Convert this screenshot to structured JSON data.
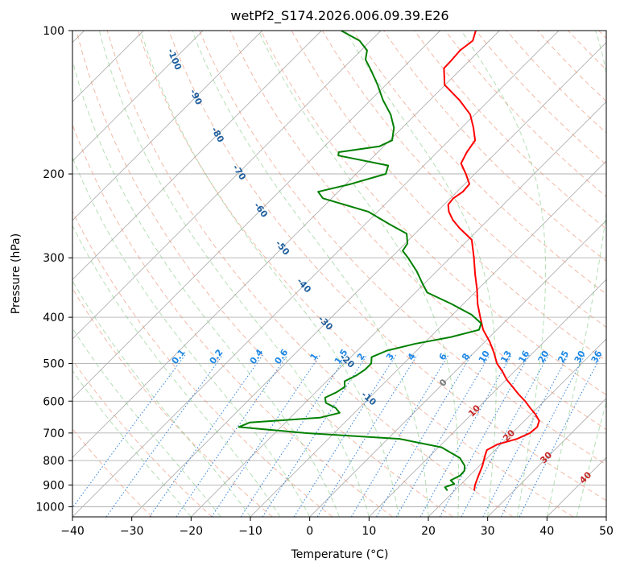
{
  "chart_data": {
    "type": "line",
    "title": "wetPf2_S174.2026.006.09.39.E26",
    "xlabel": "Temperature (°C)",
    "ylabel": "Pressure (hPa)",
    "xlim": [
      -40,
      50
    ],
    "ylim": [
      1050,
      100
    ],
    "y_scale": "log",
    "grid": true,
    "xticks": [
      -40,
      -30,
      -20,
      -10,
      0,
      10,
      20,
      30,
      40,
      50
    ],
    "yticks": [
      100,
      200,
      300,
      400,
      500,
      600,
      700,
      800,
      900,
      1000
    ],
    "skew_factor": 1.0,
    "series": [
      {
        "color": "#ff0000",
        "points": [
          [
            23.3,
            925
          ],
          [
            22.5,
            900
          ],
          [
            21.5,
            860
          ],
          [
            20.5,
            820
          ],
          [
            19.2,
            780
          ],
          [
            18.6,
            760
          ],
          [
            19.4,
            740
          ],
          [
            21.8,
            720
          ],
          [
            23.0,
            700
          ],
          [
            23.2,
            680
          ],
          [
            22.5,
            660
          ],
          [
            20.8,
            640
          ],
          [
            18.8,
            620
          ],
          [
            16.8,
            600
          ],
          [
            14.5,
            580
          ],
          [
            12.3,
            560
          ],
          [
            10.0,
            540
          ],
          [
            8.0,
            520
          ],
          [
            5.7,
            500
          ],
          [
            3.4,
            475
          ],
          [
            0.8,
            450
          ],
          [
            -2.3,
            425
          ],
          [
            -4.9,
            400
          ],
          [
            -7.6,
            375
          ],
          [
            -10.1,
            350
          ],
          [
            -13.0,
            325
          ],
          [
            -16.0,
            300
          ],
          [
            -19.4,
            275
          ],
          [
            -23.4,
            260
          ],
          [
            -25.9,
            250
          ],
          [
            -28.0,
            240
          ],
          [
            -29.3,
            232
          ],
          [
            -29.5,
            225
          ],
          [
            -29.0,
            218
          ],
          [
            -29.2,
            210
          ],
          [
            -31.5,
            200
          ],
          [
            -34.1,
            190
          ],
          [
            -35.0,
            180
          ],
          [
            -35.6,
            170
          ],
          [
            -38.0,
            160
          ],
          [
            -40.8,
            150
          ],
          [
            -45.0,
            140
          ],
          [
            -50.1,
            130
          ],
          [
            -53.0,
            120
          ],
          [
            -53.1,
            115
          ],
          [
            -53.3,
            110
          ],
          [
            -52.8,
            105
          ],
          [
            -54.0,
            100
          ]
        ]
      },
      {
        "color": "#008000",
        "points": [
          [
            18.8,
            925
          ],
          [
            17.8,
            910
          ],
          [
            18.8,
            895
          ],
          [
            17.6,
            880
          ],
          [
            18.4,
            860
          ],
          [
            18.3,
            840
          ],
          [
            17.5,
            820
          ],
          [
            15.4,
            790
          ],
          [
            10.5,
            750
          ],
          [
            2.0,
            720
          ],
          [
            -15.0,
            700
          ],
          [
            -27.1,
            680
          ],
          [
            -26.0,
            665
          ],
          [
            -15.0,
            650
          ],
          [
            -12.5,
            635
          ],
          [
            -14.0,
            620
          ],
          [
            -16.5,
            605
          ],
          [
            -17.5,
            590
          ],
          [
            -16.5,
            575
          ],
          [
            -16.0,
            560
          ],
          [
            -17.0,
            545
          ],
          [
            -16.0,
            530
          ],
          [
            -15.5,
            515
          ],
          [
            -15.5,
            500
          ],
          [
            -16.5,
            485
          ],
          [
            -15.0,
            470
          ],
          [
            -11.5,
            455
          ],
          [
            -6.5,
            440
          ],
          [
            -3.0,
            425
          ],
          [
            -3.7,
            412
          ],
          [
            -6.8,
            395
          ],
          [
            -12.0,
            375
          ],
          [
            -18.0,
            355
          ],
          [
            -20.3,
            340
          ],
          [
            -23.4,
            320
          ],
          [
            -27.1,
            300
          ],
          [
            -29.2,
            290
          ],
          [
            -29.6,
            280
          ],
          [
            -31.4,
            267
          ],
          [
            -35.9,
            255
          ],
          [
            -41.6,
            240
          ],
          [
            -51.5,
            225
          ],
          [
            -53.4,
            218
          ],
          [
            -49.2,
            210
          ],
          [
            -45.0,
            200
          ],
          [
            -46.0,
            192
          ],
          [
            -56.1,
            183
          ],
          [
            -56.6,
            180
          ],
          [
            -50.7,
            175
          ],
          [
            -49.6,
            170
          ],
          [
            -51.4,
            160
          ],
          [
            -54.2,
            150
          ],
          [
            -57.9,
            140
          ],
          [
            -61.4,
            130
          ],
          [
            -64.6,
            122
          ],
          [
            -67.7,
            115
          ],
          [
            -69.0,
            110
          ],
          [
            -71.9,
            105
          ],
          [
            -76.7,
            100
          ]
        ]
      }
    ],
    "annotations": {
      "dry_adiabat_labels": [
        "-100",
        "-90",
        "-80",
        "-70",
        "-60",
        "-50",
        "-40",
        "-30",
        "-20",
        "-10"
      ],
      "mixing_ratio_labels": [
        "0.1",
        "0.2",
        "0.4",
        "0.6",
        "1",
        "1.5",
        "2",
        "3",
        "4",
        "6",
        "8",
        "10",
        "13",
        "16",
        "20",
        "25",
        "30",
        "36"
      ],
      "moist_adiabat_labels": [
        "0",
        "10",
        "20",
        "30",
        "40"
      ]
    },
    "colors": {
      "temperature": "#ff0000",
      "dewpoint": "#008000",
      "dry_adiabat": "#e8825e",
      "moist_adiabat": "#6bbf6b",
      "mixing_ratio": "#1f77d4",
      "isotherm": "#b0b0b0"
    }
  }
}
